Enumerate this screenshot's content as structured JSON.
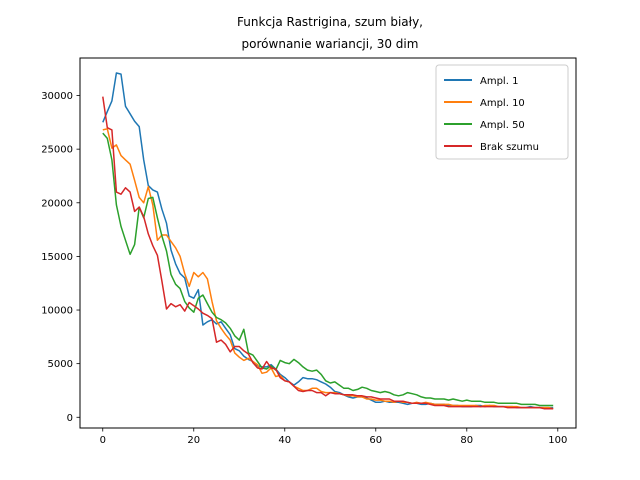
{
  "chart_data": {
    "type": "line",
    "title_line1": "Funkcja Rastrigina, szum biały,",
    "title_line2": "porównanie wariancji, 30 dim",
    "xlabel": "",
    "ylabel": "",
    "xlim": [
      -5,
      104
    ],
    "ylim": [
      -1000,
      33500
    ],
    "xticks": [
      0,
      20,
      40,
      60,
      80,
      100
    ],
    "yticks": [
      0,
      5000,
      10000,
      15000,
      20000,
      25000,
      30000
    ],
    "grid": false,
    "legend_position": "top-right",
    "x": [
      0,
      1,
      2,
      3,
      4,
      5,
      6,
      7,
      8,
      9,
      10,
      11,
      12,
      13,
      14,
      15,
      16,
      17,
      18,
      19,
      20,
      21,
      22,
      23,
      24,
      25,
      26,
      27,
      28,
      29,
      30,
      31,
      32,
      33,
      34,
      35,
      36,
      37,
      38,
      39,
      40,
      41,
      42,
      43,
      44,
      45,
      46,
      47,
      48,
      49,
      50,
      51,
      52,
      53,
      54,
      55,
      56,
      57,
      58,
      59,
      60,
      61,
      62,
      63,
      64,
      65,
      66,
      67,
      68,
      69,
      70,
      71,
      72,
      73,
      74,
      75,
      76,
      77,
      78,
      79,
      80,
      81,
      82,
      83,
      84,
      85,
      86,
      87,
      88,
      89,
      90,
      91,
      92,
      93,
      94,
      95,
      96,
      97,
      98,
      99
    ],
    "series": [
      {
        "name": "Ampl. 1",
        "color": "#1f77b4",
        "values": [
          27500,
          28500,
          29500,
          32100,
          32000,
          29000,
          28300,
          27600,
          27100,
          24000,
          21600,
          21200,
          21000,
          19400,
          18100,
          15600,
          14300,
          13400,
          13000,
          11300,
          11100,
          11900,
          8600,
          8900,
          9100,
          8700,
          8900,
          8300,
          7700,
          6400,
          6200,
          5700,
          5400,
          5200,
          4800,
          4700,
          4700,
          4900,
          4500,
          4000,
          3700,
          3300,
          3000,
          3300,
          3700,
          3600,
          3600,
          3500,
          3300,
          3100,
          2800,
          2400,
          2300,
          2100,
          1900,
          1800,
          1900,
          1900,
          1800,
          1600,
          1400,
          1400,
          1500,
          1400,
          1400,
          1400,
          1300,
          1200,
          1300,
          1300,
          1200,
          1200,
          1300,
          1200,
          1200,
          1200,
          1100,
          1100,
          1100,
          1000,
          1000,
          1000,
          1100,
          1100,
          1000,
          1100,
          1000,
          1000,
          1000,
          1000,
          1000,
          900,
          900,
          900,
          1000,
          900,
          900,
          900,
          900,
          900
        ]
      },
      {
        "name": "Ampl. 10",
        "color": "#ff7f0e",
        "values": [
          26800,
          26900,
          25100,
          25400,
          24400,
          24000,
          23600,
          22100,
          20500,
          20000,
          21500,
          19800,
          16500,
          17000,
          17000,
          16400,
          15800,
          15000,
          13400,
          12200,
          13500,
          13100,
          13500,
          12900,
          10800,
          9000,
          8300,
          7700,
          7200,
          6000,
          5600,
          5300,
          5500,
          5200,
          4900,
          4100,
          4200,
          4600,
          3800,
          3900,
          3400,
          3300,
          2900,
          2700,
          2500,
          2500,
          2700,
          2700,
          2400,
          2300,
          2300,
          2300,
          2200,
          2100,
          2000,
          2000,
          1900,
          1900,
          1700,
          1700,
          1600,
          1600,
          1500,
          1500,
          1400,
          1500,
          1400,
          1400,
          1300,
          1400,
          1300,
          1400,
          1300,
          1200,
          1200,
          1200,
          1200,
          1100,
          1100,
          1100,
          1100,
          1100,
          1100,
          1000,
          1100,
          1100,
          1100,
          1000,
          1000,
          1000,
          1000,
          1000,
          900,
          900,
          900,
          900,
          900,
          900,
          900,
          800
        ]
      },
      {
        "name": "Ampl. 50",
        "color": "#2ca02c",
        "values": [
          26500,
          26000,
          24000,
          19800,
          17800,
          16500,
          15200,
          16100,
          19600,
          18600,
          20400,
          20500,
          18600,
          16900,
          15500,
          13300,
          12400,
          12000,
          10800,
          10200,
          9800,
          11100,
          11400,
          10600,
          9800,
          9300,
          9100,
          8800,
          8300,
          7600,
          7200,
          8200,
          6000,
          5800,
          5200,
          4600,
          4500,
          4800,
          4400,
          5300,
          5100,
          5000,
          5400,
          5100,
          4700,
          4400,
          4300,
          4400,
          4000,
          3400,
          3200,
          3300,
          3000,
          2700,
          2700,
          2500,
          2600,
          2800,
          2700,
          2500,
          2400,
          2300,
          2400,
          2300,
          2100,
          2000,
          2100,
          2300,
          2200,
          2100,
          1900,
          1800,
          1800,
          1700,
          1700,
          1700,
          1600,
          1700,
          1600,
          1500,
          1600,
          1500,
          1500,
          1500,
          1400,
          1400,
          1400,
          1300,
          1300,
          1300,
          1300,
          1300,
          1200,
          1200,
          1200,
          1200,
          1100,
          1100,
          1100,
          1100
        ]
      },
      {
        "name": "Brak szumu",
        "color": "#d62728",
        "values": [
          29900,
          27000,
          26800,
          21000,
          20800,
          21400,
          21000,
          19200,
          19600,
          18700,
          17100,
          16000,
          15100,
          12700,
          10100,
          10600,
          10300,
          10500,
          9900,
          10700,
          10400,
          10100,
          9700,
          9500,
          9200,
          7000,
          7200,
          6800,
          6100,
          6600,
          6600,
          6200,
          5900,
          5100,
          4600,
          4500,
          5200,
          4600,
          4500,
          3700,
          3400,
          3300,
          2900,
          2500,
          2400,
          2500,
          2500,
          2300,
          2300,
          2000,
          2300,
          2200,
          2200,
          2100,
          2100,
          2100,
          2000,
          2000,
          1900,
          1900,
          1800,
          1700,
          1700,
          1700,
          1500,
          1500,
          1500,
          1400,
          1300,
          1300,
          1300,
          1300,
          1200,
          1100,
          1100,
          1100,
          1000,
          1000,
          1000,
          1000,
          1000,
          1000,
          1000,
          1000,
          1000,
          1000,
          1000,
          1000,
          1000,
          900,
          900,
          900,
          900,
          900,
          900,
          900,
          900,
          800,
          800,
          800
        ]
      }
    ]
  }
}
